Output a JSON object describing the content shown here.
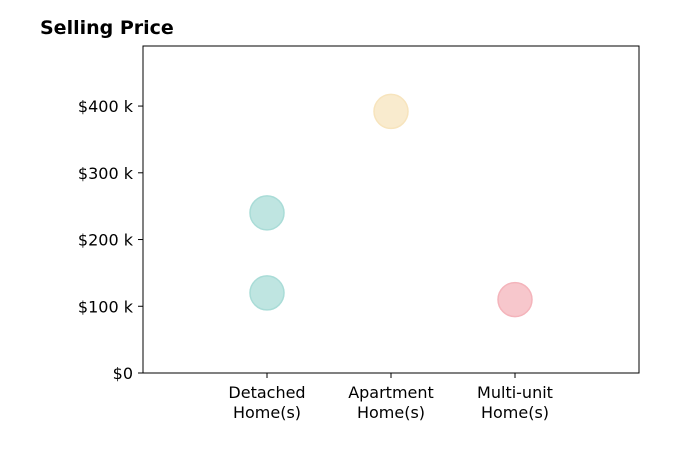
{
  "chart_data": {
    "type": "scatter",
    "title": "Selling Price",
    "xlabel": "",
    "ylabel": "",
    "categories": [
      [
        "Detached",
        "Home(s)"
      ],
      [
        "Apartment",
        "Home(s)"
      ],
      [
        "Multi-unit",
        "Home(s)"
      ]
    ],
    "y_ticks": [
      {
        "value": 0,
        "label": "$0"
      },
      {
        "value": 100000,
        "label": "$100 k"
      },
      {
        "value": 200000,
        "label": "$200 k"
      },
      {
        "value": 300000,
        "label": "$300 k"
      },
      {
        "value": 400000,
        "label": "$400 k"
      }
    ],
    "ylim": [
      0,
      490000
    ],
    "xlim": [
      -1,
      3
    ],
    "grid": false,
    "legend": "none",
    "points": [
      {
        "category_index": 0,
        "y": 120000,
        "color": "#a9dcd7"
      },
      {
        "category_index": 0,
        "y": 240000,
        "color": "#a9dcd7"
      },
      {
        "category_index": 1,
        "y": 392000,
        "color": "#f7e4bd"
      },
      {
        "category_index": 2,
        "y": 110000,
        "color": "#f4b4bb"
      }
    ]
  }
}
